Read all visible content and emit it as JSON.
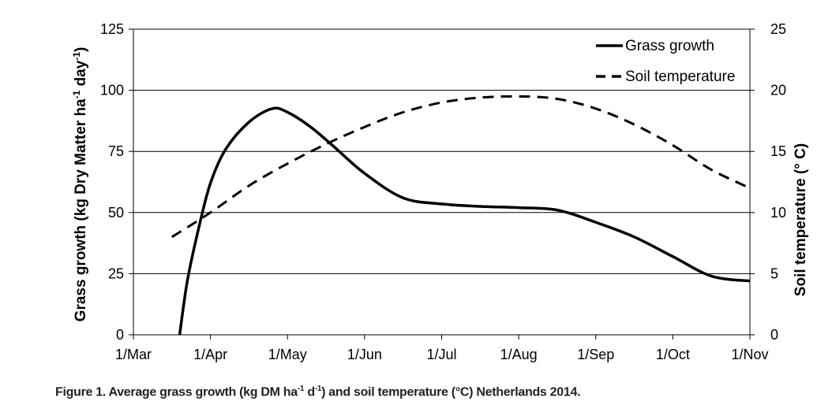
{
  "chart_data": {
    "type": "line",
    "categories": [
      "1/Mar",
      "1/Apr",
      "1/May",
      "1/Jun",
      "1/Jul",
      "1/Aug",
      "1/Sep",
      "1/Oct",
      "1/Nov"
    ],
    "ylabel": "Grass growth (kg Dry Matter  ha-1 day-1)",
    "ylabel_parts": {
      "a": "Grass growth (kg Dry Matter  ha",
      "sup1": "-1",
      "b": " day",
      "sup2": "-1",
      "c": ")"
    },
    "y2label": "Soil temperature (° C)",
    "ylim": [
      0,
      125
    ],
    "y2lim": [
      0,
      25
    ],
    "yticks": [
      "0",
      "25",
      "50",
      "75",
      "100",
      "125"
    ],
    "y2ticks": [
      "0",
      "5",
      "10",
      "15",
      "20",
      "25"
    ],
    "grid": true,
    "legend_position": "top-right",
    "series": [
      {
        "name": "Grass growth",
        "axis": "left",
        "style": "solid",
        "x": [
          0.6,
          0.7,
          0.85,
          1.0,
          1.2,
          1.5,
          1.8,
          2.0,
          2.3,
          2.6,
          3.0,
          3.5,
          4.0,
          4.5,
          5.0,
          5.5,
          6.0,
          6.5,
          7.0,
          7.5,
          8.0
        ],
        "values": [
          0,
          22,
          44,
          62,
          76,
          87,
          92.5,
          91,
          85,
          77,
          66,
          56,
          53.5,
          52.5,
          52,
          51,
          46,
          40,
          32,
          24,
          22
        ]
      },
      {
        "name": "Soil temperature",
        "axis": "right",
        "style": "dashed",
        "x": [
          0.5,
          1.0,
          1.5,
          2.0,
          2.5,
          3.0,
          3.5,
          4.0,
          4.5,
          5.0,
          5.5,
          6.0,
          6.5,
          7.0,
          7.5,
          8.0
        ],
        "values": [
          8,
          10,
          12.2,
          14,
          15.6,
          17,
          18.2,
          19,
          19.4,
          19.5,
          19.3,
          18.5,
          17.2,
          15.5,
          13.5,
          12
        ]
      }
    ]
  },
  "caption": {
    "prefix": "Figure 1. Average grass growth (kg DM ha",
    "sup1": "-1",
    "mid": " d",
    "sup2": "-1",
    "suffix": ") and soil temperature (°C) Netherlands 2014."
  }
}
